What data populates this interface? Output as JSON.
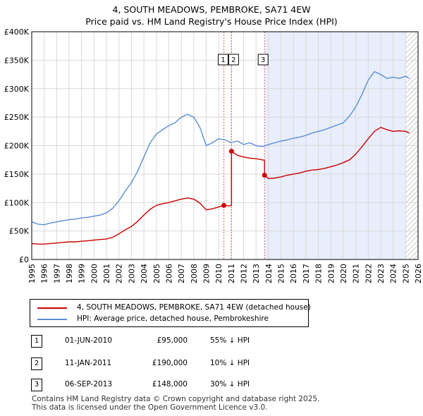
{
  "title_line1": "4, SOUTH MEADOWS, PEMBROKE, SA71 4EW",
  "title_line2": "Price paid vs. HM Land Registry's House Price Index (HPI)",
  "chart_data": {
    "type": "line",
    "xlim": [
      1995,
      2026
    ],
    "ylim": [
      0,
      400000
    ],
    "x_ticks": [
      1995,
      1996,
      1997,
      1998,
      1999,
      2000,
      2001,
      2002,
      2003,
      2004,
      2005,
      2006,
      2007,
      2008,
      2009,
      2010,
      2011,
      2012,
      2013,
      2014,
      2015,
      2016,
      2017,
      2018,
      2019,
      2020,
      2021,
      2022,
      2023,
      2024,
      2025,
      2026
    ],
    "y_ticks": [
      {
        "value": 0,
        "label": "£0"
      },
      {
        "value": 50000,
        "label": "£50K"
      },
      {
        "value": 100000,
        "label": "£100K"
      },
      {
        "value": 150000,
        "label": "£150K"
      },
      {
        "value": 200000,
        "label": "£200K"
      },
      {
        "value": 250000,
        "label": "£250K"
      },
      {
        "value": 300000,
        "label": "£300K"
      },
      {
        "value": 350000,
        "label": "£350K"
      },
      {
        "value": 400000,
        "label": "£400K"
      }
    ],
    "grid": true,
    "shaded_from": 2013.68,
    "hatched_from": 2025.0,
    "series": [
      {
        "name": "HPI: Average price, detached house, Pembrokeshire",
        "color": "#5b8dd6",
        "x": [
          1995,
          1995.5,
          1996,
          1996.5,
          1997,
          1997.5,
          1998,
          1998.5,
          1999,
          1999.5,
          2000,
          2000.5,
          2001,
          2001.5,
          2002,
          2002.5,
          2003,
          2003.5,
          2004,
          2004.5,
          2005,
          2005.5,
          2006,
          2006.5,
          2007,
          2007.5,
          2008,
          2008.5,
          2009,
          2009.5,
          2010,
          2010.5,
          2011,
          2011.5,
          2012,
          2012.5,
          2013,
          2013.5,
          2014,
          2014.5,
          2015,
          2015.5,
          2016,
          2016.5,
          2017,
          2017.5,
          2018,
          2018.5,
          2019,
          2019.5,
          2020,
          2020.5,
          2021,
          2021.5,
          2022,
          2022.5,
          2023,
          2023.5,
          2024,
          2024.5,
          2025,
          2025.3
        ],
        "values": [
          66000,
          62000,
          61000,
          64000,
          66000,
          68000,
          70000,
          71000,
          73000,
          74000,
          76000,
          78000,
          82000,
          90000,
          103000,
          120000,
          135000,
          155000,
          180000,
          205000,
          220000,
          228000,
          235000,
          240000,
          250000,
          255000,
          250000,
          232000,
          200000,
          205000,
          212000,
          210000,
          205000,
          208000,
          202000,
          205000,
          200000,
          198000,
          202000,
          205000,
          208000,
          210000,
          213000,
          215000,
          218000,
          222000,
          225000,
          228000,
          232000,
          236000,
          240000,
          252000,
          268000,
          290000,
          315000,
          330000,
          325000,
          318000,
          320000,
          318000,
          322000,
          318000
        ]
      },
      {
        "name": "4, SOUTH MEADOWS, PEMBROKE, SA71 4EW (detached house)",
        "color": "#cc0000",
        "x": [
          1995,
          1995.5,
          1996,
          1996.5,
          1997,
          1997.5,
          1998,
          1998.5,
          1999,
          1999.5,
          2000,
          2000.5,
          2001,
          2001.5,
          2002,
          2002.5,
          2003,
          2003.5,
          2004,
          2004.5,
          2005,
          2005.5,
          2006,
          2006.5,
          2007,
          2007.5,
          2008,
          2008.5,
          2009,
          2009.5,
          2010.42,
          2010.8,
          2011.03,
          2011.03,
          2011.5,
          2012,
          2012.5,
          2013,
          2013.5,
          2013.68,
          2013.68,
          2014,
          2014.5,
          2015,
          2015.5,
          2016,
          2016.5,
          2017,
          2017.5,
          2018,
          2018.5,
          2019,
          2019.5,
          2020,
          2020.5,
          2021,
          2021.5,
          2022,
          2022.5,
          2023,
          2023.5,
          2024,
          2024.5,
          2025,
          2025.3
        ],
        "values": [
          28000,
          27000,
          27000,
          28000,
          29000,
          30000,
          31000,
          31000,
          32000,
          33000,
          34000,
          35000,
          36000,
          39000,
          45000,
          52000,
          58000,
          67000,
          78000,
          88000,
          95000,
          98000,
          100000,
          103000,
          106000,
          108000,
          106000,
          99000,
          87000,
          89000,
          95000,
          94000,
          95000,
          190000,
          183000,
          180000,
          178000,
          177000,
          175000,
          174000,
          148000,
          142000,
          143000,
          145000,
          148000,
          150000,
          152000,
          155000,
          157000,
          158000,
          160000,
          163000,
          166000,
          170000,
          175000,
          185000,
          198000,
          212000,
          225000,
          232000,
          228000,
          225000,
          226000,
          225000,
          222000
        ]
      }
    ],
    "sales": [
      {
        "id": "1",
        "x": 2010.42,
        "value": 95000,
        "date": "01-JUN-2010",
        "price": "£95,000",
        "hpi": "55% ↓ HPI"
      },
      {
        "id": "2",
        "x": 2011.03,
        "value": 190000,
        "date": "11-JAN-2011",
        "price": "£190,000",
        "hpi": "10% ↓ HPI"
      },
      {
        "id": "3",
        "x": 2013.68,
        "value": 148000,
        "date": "06-SEP-2013",
        "price": "£148,000",
        "hpi": "30% ↓ HPI"
      }
    ]
  },
  "legend": {
    "property_label": "4, SOUTH MEADOWS, PEMBROKE, SA71 4EW (detached house)",
    "hpi_label": "HPI: Average price, detached house, Pembrokeshire"
  },
  "sales_table": [
    {
      "id": "1",
      "date": "01-JUN-2010",
      "price": "£95,000",
      "hpi": "55% ↓ HPI"
    },
    {
      "id": "2",
      "date": "11-JAN-2011",
      "price": "£190,000",
      "hpi": "10% ↓ HPI"
    },
    {
      "id": "3",
      "date": "06-SEP-2013",
      "price": "£148,000",
      "hpi": "30% ↓ HPI"
    }
  ],
  "footer_line1": "Contains HM Land Registry data © Crown copyright and database right 2025.",
  "footer_line2": "This data is licensed under the Open Government Licence v3.0.",
  "colors": {
    "property": "#cc0000",
    "hpi": "#5b8dd6",
    "shade": "#e8eefb",
    "grid": "#d9d9d9"
  }
}
